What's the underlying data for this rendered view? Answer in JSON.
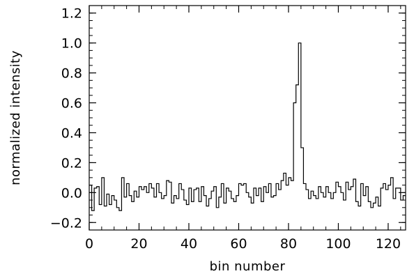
{
  "chart_data": {
    "type": "line",
    "style": "step",
    "xlabel": "bin number",
    "ylabel": "normalized intensity",
    "xlim": [
      0,
      127
    ],
    "ylim": [
      -0.25,
      1.25
    ],
    "x_ticks": [
      0,
      20,
      40,
      60,
      80,
      100,
      120
    ],
    "x_tick_labels": [
      "0",
      "20",
      "40",
      "60",
      "80",
      "100",
      "120"
    ],
    "y_ticks": [
      -0.2,
      0.0,
      0.2,
      0.4,
      0.6,
      0.8,
      1.0,
      1.2
    ],
    "y_tick_labels": [
      "−0.2",
      "0.0",
      "0.2",
      "0.4",
      "0.6",
      "0.8",
      "1.0",
      "1.2"
    ],
    "x_minor_step": 5,
    "y_minor_step": 0.05,
    "grid": false,
    "legend": "none",
    "color": "#000000",
    "series": [
      {
        "x_start": 0,
        "bin_width": 1,
        "values": [
          0.05,
          -0.12,
          0.03,
          0.04,
          -0.08,
          0.1,
          -0.09,
          -0.01,
          -0.08,
          -0.02,
          -0.05,
          -0.1,
          -0.12,
          0.1,
          -0.03,
          0.06,
          -0.02,
          -0.06,
          0.01,
          -0.03,
          0.04,
          0.02,
          0.04,
          0.0,
          0.06,
          0.03,
          -0.03,
          0.06,
          0.0,
          -0.04,
          -0.02,
          0.08,
          0.07,
          -0.07,
          -0.02,
          -0.04,
          0.06,
          0.02,
          -0.05,
          -0.08,
          0.03,
          -0.06,
          0.02,
          0.03,
          -0.06,
          0.04,
          -0.02,
          -0.09,
          -0.04,
          0.01,
          0.04,
          -0.1,
          -0.03,
          0.06,
          -0.07,
          0.03,
          0.01,
          -0.04,
          -0.06,
          -0.02,
          0.06,
          0.05,
          0.06,
          0.0,
          -0.03,
          -0.07,
          0.03,
          -0.02,
          0.03,
          -0.06,
          0.04,
          0.0,
          0.06,
          -0.03,
          -0.02,
          0.06,
          0.02,
          0.08,
          0.13,
          0.05,
          0.1,
          0.08,
          0.6,
          0.72,
          1.0,
          0.3,
          0.06,
          0.02,
          -0.04,
          0.01,
          -0.02,
          -0.04,
          0.04,
          0.0,
          -0.03,
          0.04,
          0.0,
          -0.04,
          0.0,
          0.07,
          0.04,
          0.0,
          -0.05,
          0.07,
          0.02,
          0.04,
          0.09,
          -0.06,
          -0.09,
          0.06,
          -0.02,
          0.04,
          -0.06,
          -0.1,
          -0.07,
          -0.03,
          -0.09,
          0.03,
          0.06,
          0.02,
          0.05,
          0.1,
          -0.04,
          0.03,
          0.03,
          -0.05,
          -0.02
        ]
      }
    ]
  }
}
